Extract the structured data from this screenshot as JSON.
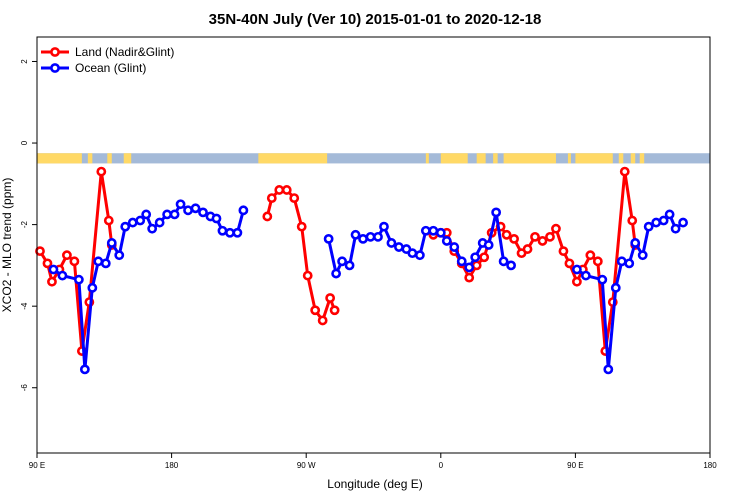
{
  "chart_data": {
    "type": "line",
    "title": "35N-40N July (Ver 10)   2015-01-01 to 2020-12-18",
    "xlabel": "Longitude (deg E)",
    "ylabel": "XCO2 - MLO trend (ppm)",
    "xlim": [
      90,
      540
    ],
    "ylim": [
      -7.6,
      2.6
    ],
    "x_ticks": [
      {
        "value": 90,
        "label": "90 E"
      },
      {
        "value": 180,
        "label": "180"
      },
      {
        "value": 270,
        "label": "90 W"
      },
      {
        "value": 360,
        "label": "0"
      },
      {
        "value": 450,
        "label": "90 E"
      },
      {
        "value": 540,
        "label": "180"
      }
    ],
    "y_ticks": [
      {
        "value": 2,
        "label": "2"
      },
      {
        "value": 0,
        "label": "0"
      },
      {
        "value": -2,
        "label": "-2"
      },
      {
        "value": -4,
        "label": "-4"
      },
      {
        "value": -6,
        "label": "-6"
      }
    ],
    "legend_position": "top-left",
    "land_sea_strip": {
      "y_range": [
        -0.5,
        -0.25
      ],
      "land_color": "#ffd966",
      "ocean_color": "#a4bad8",
      "land_segments": [
        [
          90,
          120
        ],
        [
          124,
          127
        ],
        [
          137,
          140
        ],
        [
          148,
          153
        ],
        [
          238,
          284
        ],
        [
          350,
          352
        ],
        [
          360,
          378
        ],
        [
          384,
          390
        ],
        [
          395,
          398
        ],
        [
          402,
          437
        ],
        [
          445,
          447
        ],
        [
          450,
          475
        ],
        [
          479,
          482
        ],
        [
          487,
          490
        ],
        [
          493,
          496
        ]
      ]
    },
    "series": [
      {
        "name": "Land (Nadir&Glint)",
        "color": "#ff0000",
        "points": [
          [
            92,
            -2.65
          ],
          [
            97,
            -2.95
          ],
          [
            100,
            -3.4
          ],
          [
            105,
            -3.1
          ],
          [
            110,
            -2.75
          ],
          [
            115,
            -2.9
          ],
          [
            120,
            -5.1
          ],
          [
            125,
            -3.9
          ],
          [
            133,
            -0.7
          ],
          [
            138,
            -1.9
          ],
          [
            140,
            -2.5
          ],
          [
            null,
            null
          ],
          [
            244,
            -1.8
          ],
          [
            247,
            -1.35
          ],
          [
            252,
            -1.15
          ],
          [
            257,
            -1.15
          ],
          [
            262,
            -1.35
          ],
          [
            267,
            -2.05
          ],
          [
            271,
            -3.25
          ],
          [
            276,
            -4.1
          ],
          [
            281,
            -4.35
          ],
          [
            286,
            -3.8
          ],
          [
            289,
            -4.1
          ],
          [
            null,
            null
          ],
          [
            355,
            -2.25
          ],
          [
            360,
            -2.2
          ],
          [
            364,
            -2.2
          ],
          [
            369,
            -2.65
          ],
          [
            374,
            -2.95
          ],
          [
            379,
            -3.3
          ],
          [
            384,
            -3.0
          ],
          [
            389,
            -2.8
          ],
          [
            394,
            -2.2
          ],
          [
            400,
            -2.05
          ],
          [
            404,
            -2.25
          ],
          [
            409,
            -2.35
          ],
          [
            414,
            -2.7
          ],
          [
            418,
            -2.6
          ],
          [
            423,
            -2.3
          ],
          [
            428,
            -2.4
          ],
          [
            433,
            -2.3
          ],
          [
            437,
            -2.1
          ],
          [
            442,
            -2.65
          ],
          [
            446,
            -2.95
          ],
          [
            451,
            -3.4
          ],
          [
            455,
            -3.1
          ],
          [
            460,
            -2.75
          ],
          [
            465,
            -2.9
          ],
          [
            470,
            -5.1
          ],
          [
            475,
            -3.9
          ],
          [
            483,
            -0.7
          ],
          [
            488,
            -1.9
          ],
          [
            490,
            -2.5
          ]
        ]
      },
      {
        "name": "Ocean (Glint)",
        "color": "#0000ff",
        "points": [
          [
            101,
            -3.1
          ],
          [
            107,
            -3.25
          ],
          [
            118,
            -3.35
          ],
          [
            122,
            -5.55
          ],
          [
            127,
            -3.55
          ],
          [
            131,
            -2.9
          ],
          [
            136,
            -2.95
          ],
          [
            140,
            -2.45
          ],
          [
            145,
            -2.75
          ],
          [
            149,
            -2.05
          ],
          [
            154,
            -1.95
          ],
          [
            159,
            -1.9
          ],
          [
            163,
            -1.75
          ],
          [
            167,
            -2.1
          ],
          [
            172,
            -1.95
          ],
          [
            177,
            -1.75
          ],
          [
            182,
            -1.75
          ],
          [
            186,
            -1.5
          ],
          [
            191,
            -1.65
          ],
          [
            196,
            -1.6
          ],
          [
            201,
            -1.7
          ],
          [
            206,
            -1.8
          ],
          [
            210,
            -1.85
          ],
          [
            214,
            -2.15
          ],
          [
            219,
            -2.2
          ],
          [
            224,
            -2.2
          ],
          [
            228,
            -1.65
          ],
          [
            null,
            null
          ],
          [
            285,
            -2.35
          ],
          [
            290,
            -3.2
          ],
          [
            294,
            -2.9
          ],
          [
            299,
            -3.0
          ],
          [
            303,
            -2.25
          ],
          [
            308,
            -2.35
          ],
          [
            313,
            -2.3
          ],
          [
            318,
            -2.3
          ],
          [
            322,
            -2.05
          ],
          [
            327,
            -2.45
          ],
          [
            332,
            -2.55
          ],
          [
            337,
            -2.6
          ],
          [
            341,
            -2.7
          ],
          [
            346,
            -2.75
          ],
          [
            350,
            -2.15
          ],
          [
            355,
            -2.15
          ],
          [
            360,
            -2.2
          ],
          [
            364,
            -2.4
          ],
          [
            369,
            -2.55
          ],
          [
            374,
            -2.9
          ],
          [
            379,
            -3.05
          ],
          [
            383,
            -2.8
          ],
          [
            388,
            -2.45
          ],
          [
            392,
            -2.5
          ],
          [
            397,
            -1.7
          ],
          [
            402,
            -2.9
          ],
          [
            407,
            -3.0
          ],
          [
            null,
            null
          ],
          [
            451,
            -3.1
          ],
          [
            457,
            -3.25
          ],
          [
            468,
            -3.35
          ],
          [
            472,
            -5.55
          ],
          [
            477,
            -3.55
          ],
          [
            481,
            -2.9
          ],
          [
            486,
            -2.95
          ],
          [
            490,
            -2.45
          ],
          [
            495,
            -2.75
          ],
          [
            499,
            -2.05
          ],
          [
            504,
            -1.95
          ],
          [
            509,
            -1.9
          ],
          [
            513,
            -1.75
          ],
          [
            517,
            -2.1
          ],
          [
            522,
            -1.95
          ]
        ]
      }
    ]
  }
}
